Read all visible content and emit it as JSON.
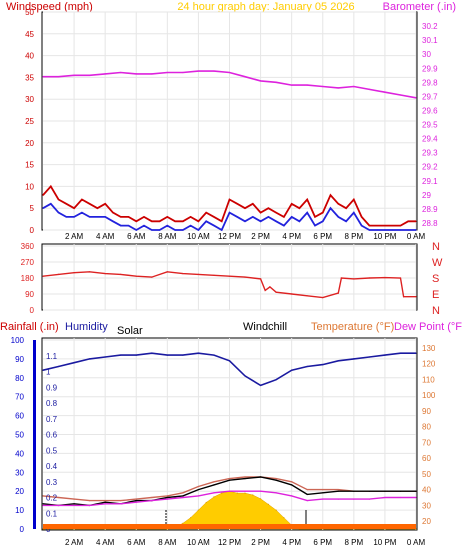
{
  "header": {
    "left_title": "Windspeed (mph)",
    "center_title": "24 hour graph day:  January 05 2026",
    "right_title": "Barometer (.in)"
  },
  "lower_header": {
    "rainfall": "Rainfall (.in)",
    "humidity": "Humidity",
    "solar": "Solar",
    "windchill": "Windchill",
    "temperature": "Temperature (°F)",
    "dew_point": "Dew Point (°F)"
  },
  "colors": {
    "windspeed": "#cc0000",
    "wind_avg": "#2222dd",
    "barometer": "#dd22dd",
    "direction": "#dd2222",
    "humidity": "#1a1aa0",
    "rain_axis": "#0000cc",
    "temp_axis": "#dd7733",
    "temperature": "#dd2222",
    "dew_point": "#dd22dd",
    "windchill": "#000000",
    "solar": "#ffcc00",
    "center_title": "#ffcc00"
  },
  "chart_data": [
    {
      "type": "line",
      "name": "wind-barometer",
      "x_ticks": [
        "2 AM",
        "4 AM",
        "6 AM",
        "8 AM",
        "10 AM",
        "12 PM",
        "2 PM",
        "4 PM",
        "6 PM",
        "8 PM",
        "10 PM",
        "0 AM"
      ],
      "left_axis": {
        "ticks": [
          "0",
          "5",
          "10",
          "15",
          "20",
          "25",
          "30",
          "35",
          "40",
          "45",
          "50"
        ],
        "range": [
          0,
          50
        ]
      },
      "right_axis": {
        "ticks": [
          "28.8",
          "28.9",
          "29",
          "29.1",
          "29.2",
          "29.3",
          "29.4",
          "29.5",
          "29.6",
          "29.7",
          "29.8",
          "29.9",
          "30",
          "30.1",
          "30.2"
        ],
        "range": [
          28.75,
          30.3
        ]
      },
      "series": [
        {
          "key": "barometer",
          "axis": "right",
          "x": [
            0,
            1,
            2,
            3,
            4,
            5,
            6,
            7,
            8,
            9,
            10,
            11,
            12,
            13,
            14,
            15,
            16,
            17,
            18,
            19,
            20,
            21,
            22,
            23,
            24
          ],
          "values": [
            29.84,
            29.84,
            29.85,
            29.85,
            29.86,
            29.87,
            29.86,
            29.86,
            29.87,
            29.87,
            29.88,
            29.88,
            29.87,
            29.84,
            29.81,
            29.8,
            29.78,
            29.78,
            29.77,
            29.76,
            29.77,
            29.75,
            29.73,
            29.71,
            29.69
          ]
        },
        {
          "key": "windspeed",
          "axis": "left",
          "x": [
            0,
            0.5,
            1,
            1.5,
            2,
            2.5,
            3,
            3.5,
            4,
            4.5,
            5,
            5.5,
            6,
            6.5,
            7,
            7.5,
            8,
            8.5,
            9,
            9.5,
            10,
            10.5,
            11,
            11.5,
            12,
            12.5,
            13,
            13.5,
            14,
            14.5,
            15,
            15.5,
            16,
            16.5,
            17,
            17.5,
            18,
            18.5,
            19,
            19.5,
            20,
            20.5,
            21,
            21.5,
            22,
            22.5,
            23,
            23.5,
            24
          ],
          "values": [
            8,
            10,
            7,
            6,
            5,
            7,
            6,
            5,
            6,
            4,
            3,
            3,
            2,
            3,
            2,
            2,
            3,
            2,
            2,
            3,
            2,
            4,
            3,
            2,
            7,
            6,
            5,
            6,
            4,
            5,
            4,
            3,
            6,
            5,
            7,
            3,
            4,
            8,
            6,
            5,
            7,
            3,
            1,
            1,
            1,
            1,
            1,
            2,
            2
          ]
        },
        {
          "key": "wind_avg",
          "axis": "left",
          "x": [
            0,
            0.5,
            1,
            1.5,
            2,
            2.5,
            3,
            3.5,
            4,
            4.5,
            5,
            5.5,
            6,
            6.5,
            7,
            7.5,
            8,
            8.5,
            9,
            9.5,
            10,
            10.5,
            11,
            11.5,
            12,
            12.5,
            13,
            13.5,
            14,
            14.5,
            15,
            15.5,
            16,
            16.5,
            17,
            17.5,
            18,
            18.5,
            19,
            19.5,
            20,
            20.5,
            21,
            21.5,
            22,
            22.5,
            23,
            23.5,
            24
          ],
          "values": [
            5,
            6,
            4,
            3,
            3,
            4,
            3,
            3,
            3,
            2,
            1,
            1,
            0,
            1,
            0,
            0,
            1,
            0,
            0,
            1,
            0,
            2,
            1,
            0,
            4,
            3,
            2,
            3,
            2,
            3,
            2,
            1,
            3,
            2,
            4,
            1,
            2,
            5,
            3,
            2,
            4,
            1,
            0,
            0,
            0,
            0,
            0,
            0,
            0
          ]
        }
      ]
    },
    {
      "type": "line",
      "name": "wind-direction",
      "left_axis": {
        "ticks": [
          "0",
          "90",
          "180",
          "270",
          "360"
        ],
        "range": [
          0,
          360
        ]
      },
      "right_axis": {
        "ticks": [
          "N",
          "E",
          "S",
          "W",
          "N"
        ]
      },
      "series": [
        {
          "key": "direction",
          "x": [
            0,
            1,
            2,
            3,
            4,
            5,
            6,
            7,
            8,
            9,
            10,
            11,
            12,
            13,
            14,
            14.3,
            14.6,
            15,
            16,
            17,
            18,
            19,
            19.2,
            20,
            21,
            22,
            23,
            23.2,
            24
          ],
          "values": [
            190,
            200,
            210,
            215,
            205,
            200,
            190,
            185,
            215,
            205,
            200,
            195,
            190,
            185,
            175,
            110,
            130,
            100,
            90,
            80,
            70,
            95,
            180,
            175,
            180,
            182,
            180,
            75,
            75
          ]
        }
      ]
    },
    {
      "type": "line",
      "name": "temperature-humidity",
      "x_ticks": [
        "2 AM",
        "4 AM",
        "6 AM",
        "8 AM",
        "10 AM",
        "12 PM",
        "2 PM",
        "4 PM",
        "6 PM",
        "8 PM",
        "10 PM",
        "0 AM"
      ],
      "rain_axis": {
        "ticks": [
          "0",
          "0.1",
          "0.2",
          "0.3",
          "0.4",
          "0.5",
          "0.6",
          "0.7",
          "0.8",
          "0.9",
          "1",
          "1.1"
        ],
        "range": [
          0,
          1.2
        ]
      },
      "humidity_axis": {
        "ticks": [
          "0",
          "10",
          "20",
          "30",
          "40",
          "50",
          "60",
          "70",
          "80",
          "90",
          "100"
        ],
        "range": [
          0,
          100
        ]
      },
      "temp_axis": {
        "ticks": [
          "20",
          "30",
          "40",
          "50",
          "60",
          "70",
          "80",
          "90",
          "100",
          "110",
          "120",
          "130"
        ],
        "range": [
          15,
          135
        ]
      },
      "series": [
        {
          "key": "humidity",
          "axis": "humidity",
          "x": [
            0,
            1,
            2,
            3,
            4,
            5,
            6,
            7,
            8,
            9,
            10,
            11,
            12,
            13,
            14,
            15,
            16,
            17,
            18,
            19,
            20,
            21,
            22,
            23,
            24
          ],
          "values": [
            84,
            86,
            88,
            90,
            91,
            92,
            92,
            93,
            92,
            92,
            93,
            92,
            89,
            81,
            76,
            79,
            84,
            86,
            87,
            89,
            90,
            91,
            92,
            93,
            93
          ]
        },
        {
          "key": "temperature",
          "axis": "temp",
          "x": [
            0,
            1,
            2,
            3,
            4,
            5,
            6,
            7,
            8,
            9,
            10,
            11,
            12,
            13,
            14,
            15,
            16,
            17,
            18,
            19,
            20,
            21,
            22,
            23,
            24
          ],
          "values": [
            36,
            35,
            34,
            33,
            33,
            33,
            34,
            35,
            36,
            38,
            42,
            45,
            47,
            48,
            48,
            47,
            45,
            40,
            40,
            40,
            39,
            39,
            39,
            39,
            39
          ]
        },
        {
          "key": "windchill",
          "axis": "temp",
          "x": [
            0,
            1,
            2,
            3,
            4,
            5,
            6,
            7,
            8,
            9,
            10,
            11,
            12,
            13,
            14,
            15,
            16,
            17,
            18,
            19,
            20,
            21,
            22,
            23,
            24
          ],
          "values": [
            31,
            30,
            31,
            30,
            32,
            31,
            33,
            33,
            35,
            36,
            40,
            43,
            46,
            47,
            48,
            46,
            43,
            37,
            38,
            39,
            39,
            39,
            39,
            39,
            39
          ]
        },
        {
          "key": "dew_point",
          "axis": "temp",
          "x": [
            0,
            1,
            2,
            3,
            4,
            5,
            6,
            7,
            8,
            9,
            10,
            11,
            12,
            13,
            14,
            15,
            16,
            17,
            18,
            19,
            20,
            21,
            22,
            23,
            24
          ],
          "values": [
            30,
            30,
            30,
            30,
            31,
            31,
            32,
            33,
            34,
            35,
            36,
            38,
            39,
            39,
            39,
            38,
            36,
            33,
            34,
            34,
            34,
            34,
            35,
            35,
            35
          ]
        },
        {
          "key": "solar",
          "axis": "humidity",
          "x": [
            0,
            8,
            8.5,
            9,
            9.5,
            10,
            10.5,
            11,
            11.5,
            12,
            12.5,
            13,
            13.5,
            14,
            14.5,
            15,
            15.5,
            16,
            16.5,
            24
          ],
          "values": [
            0,
            0,
            1,
            3,
            6,
            10,
            14,
            17,
            19,
            20,
            19,
            19,
            18,
            16,
            13,
            10,
            6,
            2,
            0,
            0
          ]
        }
      ]
    }
  ]
}
